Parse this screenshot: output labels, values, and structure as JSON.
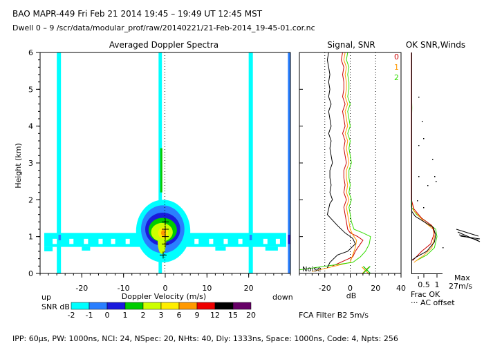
{
  "header": {
    "line1": "BAO   MAPR-449   Fri Feb 21 2014 19:45 – 19:49 UT 12:45 MST",
    "line2": "Dwell   0  –  9    /scr/data/modular_prof/raw/20140221/21-Feb-2014_19-45-01.cor.nc"
  },
  "footer": {
    "params": "IPP:  60μs,   PW: 1000ns,   NCI:  24,   NSpec: 20, NHts: 40,   Dly: 1333ns,   Space: 1000ns,   Code: 4,   Npts: 256"
  },
  "colors": {
    "teal": "#00ffff",
    "blue": "#2a7fff",
    "dark_blue": "#1a1adc",
    "green": "#00cc00",
    "yellow_green": "#ccff00",
    "yellow": "#ffee00",
    "orange": "#ff9900",
    "red": "#ee0000",
    "black": "#000000",
    "purple": "#660066",
    "line_0": "#cc0000",
    "line_1": "#ff9900",
    "line_2": "#33dd00"
  },
  "chart_data": [
    {
      "type": "heatmap",
      "title": "Averaged Doppler Spectra",
      "xlabel": "Doppler Velocity (m/s)",
      "ylabel": "Height (km)",
      "xlim": [
        -30,
        30
      ],
      "ylim": [
        0,
        6
      ],
      "xticks": [
        -20,
        -10,
        0,
        10,
        20
      ],
      "yticks": [
        0,
        1,
        2,
        3,
        4,
        5,
        6
      ],
      "left_label": "up",
      "right_label": "down",
      "colorbar": {
        "label": "SNR dB",
        "ticks": [
          "-2",
          "-1",
          "0",
          "1",
          "2",
          "3",
          "6",
          "9",
          "12",
          "15",
          "20"
        ],
        "colors": [
          "#00ffff",
          "#2a7fff",
          "#1a1adc",
          "#00cc00",
          "#ccff00",
          "#ffee00",
          "#ff9900",
          "#ee0000",
          "#000000",
          "#660066"
        ]
      },
      "regions": [
        {
          "name": "left-stripe",
          "x": [
            -26,
            -25
          ],
          "y": [
            0,
            6
          ],
          "level": "-2"
        },
        {
          "name": "center-stripe",
          "x": [
            -1.6,
            -0.8
          ],
          "y": [
            0,
            6
          ],
          "level": "-2"
        },
        {
          "name": "right-stripe",
          "x": [
            20,
            21
          ],
          "y": [
            0,
            6
          ],
          "level": "-2"
        },
        {
          "name": "edge-stripe",
          "x": [
            29.5,
            30
          ],
          "y": [
            0,
            6
          ],
          "level": "-1"
        },
        {
          "name": "band",
          "x": [
            -29,
            29
          ],
          "y": [
            0.7,
            1.1
          ],
          "level": "-2"
        },
        {
          "name": "core",
          "x": [
            -6,
            5
          ],
          "y": [
            0.4,
            2.0
          ],
          "level": "6"
        }
      ],
      "markers": [
        {
          "x": 0,
          "y": 1.4
        },
        {
          "x": 0,
          "y": 1.2
        },
        {
          "x": 0,
          "y": 1.0
        },
        {
          "x": 0,
          "y": 0.8
        },
        {
          "x": -0.5,
          "y": 0.5
        }
      ]
    },
    {
      "type": "line",
      "title": "Signal, SNR",
      "xlabel": "dB",
      "xlim": [
        -40,
        40
      ],
      "ylim": [
        0,
        6
      ],
      "xticks": [
        -20,
        0,
        20,
        40
      ],
      "annotation": "Noise",
      "series": [
        {
          "name": "0",
          "color": "#cc0000",
          "x": [
            -6,
            -7,
            -5,
            -6,
            -5,
            -5,
            -6,
            -4,
            -6,
            -5,
            -4,
            -6,
            -4,
            -5,
            -4,
            -3,
            -5,
            -5,
            -4,
            -5,
            -3,
            -5,
            -4,
            -3,
            -2,
            0,
            6,
            10,
            8,
            4,
            2,
            -14
          ],
          "y": [
            6.0,
            5.8,
            5.6,
            5.4,
            5.2,
            5.0,
            4.8,
            4.6,
            4.4,
            4.2,
            4.0,
            3.8,
            3.6,
            3.4,
            3.2,
            3.0,
            2.8,
            2.6,
            2.4,
            2.2,
            2.0,
            1.8,
            1.6,
            1.4,
            1.2,
            1.1,
            1.0,
            0.9,
            0.8,
            0.6,
            0.45,
            0.2
          ]
        },
        {
          "name": "1",
          "color": "#ff9900",
          "x": [
            -4,
            -5,
            -3,
            -4,
            -3,
            -3,
            -4,
            -2,
            -4,
            -3,
            -2,
            -4,
            -2,
            -3,
            -2,
            -1,
            -3,
            -3,
            -2,
            -3,
            -1,
            -3,
            -2,
            -1,
            0,
            2,
            5,
            4,
            2,
            0,
            -30
          ],
          "y": [
            6.0,
            5.8,
            5.6,
            5.4,
            5.2,
            5.0,
            4.8,
            4.6,
            4.4,
            4.2,
            4.0,
            3.8,
            3.6,
            3.4,
            3.2,
            3.0,
            2.8,
            2.6,
            2.4,
            2.2,
            2.0,
            1.8,
            1.6,
            1.4,
            1.2,
            1.05,
            0.9,
            0.7,
            0.5,
            0.3,
            0.05
          ]
        },
        {
          "name": "2",
          "color": "#33dd00",
          "x": [
            -2,
            -3,
            -1,
            -2,
            -1,
            -1,
            -2,
            0,
            -2,
            -1,
            0,
            -2,
            0,
            -1,
            0,
            1,
            -1,
            -1,
            0,
            -1,
            1,
            -1,
            0,
            1,
            3,
            10,
            16,
            15,
            12,
            8,
            2,
            -40
          ],
          "y": [
            6.0,
            5.8,
            5.6,
            5.4,
            5.2,
            5.0,
            4.8,
            4.6,
            4.4,
            4.2,
            4.0,
            3.8,
            3.6,
            3.4,
            3.2,
            3.0,
            2.8,
            2.6,
            2.4,
            2.2,
            2.0,
            1.8,
            1.6,
            1.4,
            1.2,
            1.1,
            1.0,
            0.8,
            0.6,
            0.45,
            0.3,
            0.1
          ]
        },
        {
          "name": "noise",
          "color": "#000000",
          "x": [
            -17,
            -18,
            -17,
            -16,
            -17,
            -16,
            -17,
            -15,
            -17,
            -16,
            -15,
            -17,
            -15,
            -16,
            -15,
            -14,
            -16,
            -16,
            -15,
            -16,
            -14,
            -16,
            -18,
            -10,
            -4,
            2,
            4,
            -2,
            -10,
            -16,
            -18
          ],
          "y": [
            6.0,
            5.8,
            5.6,
            5.4,
            5.2,
            5.0,
            4.8,
            4.6,
            4.4,
            4.2,
            4.0,
            3.8,
            3.6,
            3.4,
            3.2,
            3.0,
            2.8,
            2.6,
            2.4,
            2.2,
            2.0,
            1.9,
            1.6,
            1.3,
            1.1,
            0.95,
            0.8,
            0.6,
            0.5,
            0.3,
            0.15
          ]
        }
      ]
    },
    {
      "type": "line",
      "title": "OK SNR,Winds",
      "xlabel": "Frac OK",
      "xticks": [
        "0.5",
        "1"
      ],
      "legend": [
        "0",
        "1",
        "2"
      ],
      "note_max": "Max",
      "note_speed": "27m/s",
      "note_ac": "··· AC offset",
      "filter_text": "FCA Filter B2   5m/s"
    }
  ]
}
